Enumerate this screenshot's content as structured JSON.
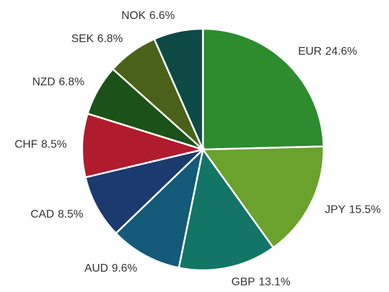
{
  "chart_data": {
    "type": "pie",
    "categories": [
      "EUR",
      "JPY",
      "GBP",
      "AUD",
      "CAD",
      "CHF",
      "NZD",
      "SEK",
      "NOK"
    ],
    "values": [
      24.6,
      15.5,
      13.1,
      9.6,
      8.5,
      8.5,
      6.8,
      6.8,
      6.6
    ],
    "value_labels": [
      "24.6%",
      "15.5%",
      "13.1%",
      "9.6%",
      "8.5%",
      "8.5%",
      "6.8%",
      "6.8%",
      "6.6%"
    ],
    "colors": [
      "#2e8b2e",
      "#6aa22d",
      "#137566",
      "#135a78",
      "#1b3a6e",
      "#b01c2e",
      "#1b5219",
      "#4a6119",
      "#0d4a45"
    ]
  }
}
